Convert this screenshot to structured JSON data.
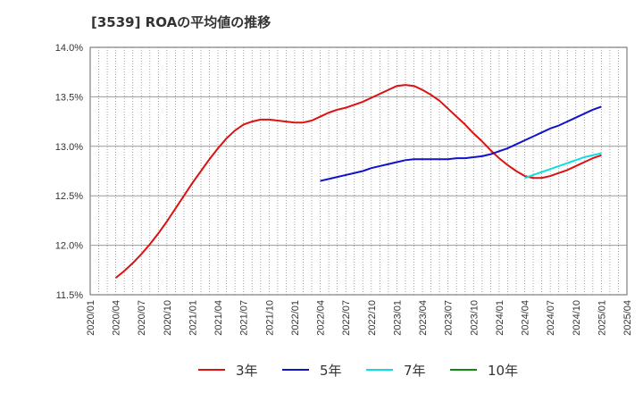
{
  "chart_data": {
    "type": "line",
    "title": "[3539]  ROAの平均値の推移",
    "xlabel": "",
    "ylabel": "",
    "ylim": [
      11.5,
      14.0
    ],
    "yticks": [
      "11.5%",
      "12.0%",
      "12.5%",
      "13.0%",
      "13.5%",
      "14.0%"
    ],
    "ytick_values": [
      11.5,
      12.0,
      12.5,
      13.0,
      13.5,
      14.0
    ],
    "xticks": [
      "2020/01",
      "2020/04",
      "2020/07",
      "2020/10",
      "2021/01",
      "2021/04",
      "2021/07",
      "2021/10",
      "2022/01",
      "2022/04",
      "2022/07",
      "2022/10",
      "2023/01",
      "2023/04",
      "2023/07",
      "2023/10",
      "2024/01",
      "2024/04",
      "2024/07",
      "2024/10",
      "2025/01",
      "2025/04"
    ],
    "grid": true,
    "legend_position": "bottom",
    "series": [
      {
        "name": "3年",
        "color": "#dd1111",
        "points": [
          [
            "2020/04",
            11.67
          ],
          [
            "2020/05",
            11.74
          ],
          [
            "2020/06",
            11.82
          ],
          [
            "2020/07",
            11.91
          ],
          [
            "2020/08",
            12.01
          ],
          [
            "2020/09",
            12.12
          ],
          [
            "2020/10",
            12.24
          ],
          [
            "2020/11",
            12.37
          ],
          [
            "2020/12",
            12.5
          ],
          [
            "2021/01",
            12.63
          ],
          [
            "2021/02",
            12.75
          ],
          [
            "2021/03",
            12.87
          ],
          [
            "2021/04",
            12.98
          ],
          [
            "2021/05",
            13.08
          ],
          [
            "2021/06",
            13.16
          ],
          [
            "2021/07",
            13.22
          ],
          [
            "2021/08",
            13.25
          ],
          [
            "2021/09",
            13.27
          ],
          [
            "2021/10",
            13.27
          ],
          [
            "2021/11",
            13.26
          ],
          [
            "2021/12",
            13.25
          ],
          [
            "2022/01",
            13.24
          ],
          [
            "2022/02",
            13.24
          ],
          [
            "2022/03",
            13.26
          ],
          [
            "2022/04",
            13.3
          ],
          [
            "2022/05",
            13.34
          ],
          [
            "2022/06",
            13.37
          ],
          [
            "2022/07",
            13.39
          ],
          [
            "2022/08",
            13.42
          ],
          [
            "2022/09",
            13.45
          ],
          [
            "2022/10",
            13.49
          ],
          [
            "2022/11",
            13.53
          ],
          [
            "2022/12",
            13.57
          ],
          [
            "2023/01",
            13.61
          ],
          [
            "2023/02",
            13.62
          ],
          [
            "2023/03",
            13.61
          ],
          [
            "2023/04",
            13.57
          ],
          [
            "2023/05",
            13.52
          ],
          [
            "2023/06",
            13.46
          ],
          [
            "2023/07",
            13.38
          ],
          [
            "2023/08",
            13.3
          ],
          [
            "2023/09",
            13.22
          ],
          [
            "2023/10",
            13.13
          ],
          [
            "2023/11",
            13.05
          ],
          [
            "2023/12",
            12.96
          ],
          [
            "2024/01",
            12.88
          ],
          [
            "2024/02",
            12.81
          ],
          [
            "2024/03",
            12.75
          ],
          [
            "2024/04",
            12.7
          ],
          [
            "2024/05",
            12.68
          ],
          [
            "2024/06",
            12.68
          ],
          [
            "2024/07",
            12.7
          ],
          [
            "2024/08",
            12.73
          ],
          [
            "2024/09",
            12.76
          ],
          [
            "2024/10",
            12.8
          ],
          [
            "2024/11",
            12.84
          ],
          [
            "2024/12",
            12.88
          ],
          [
            "2025/01",
            12.91
          ]
        ]
      },
      {
        "name": "5年",
        "color": "#1111cc",
        "points": [
          [
            "2022/04",
            12.65
          ],
          [
            "2022/05",
            12.67
          ],
          [
            "2022/06",
            12.69
          ],
          [
            "2022/07",
            12.71
          ],
          [
            "2022/08",
            12.73
          ],
          [
            "2022/09",
            12.75
          ],
          [
            "2022/10",
            12.78
          ],
          [
            "2022/11",
            12.8
          ],
          [
            "2022/12",
            12.82
          ],
          [
            "2023/01",
            12.84
          ],
          [
            "2023/02",
            12.86
          ],
          [
            "2023/03",
            12.87
          ],
          [
            "2023/04",
            12.87
          ],
          [
            "2023/05",
            12.87
          ],
          [
            "2023/06",
            12.87
          ],
          [
            "2023/07",
            12.87
          ],
          [
            "2023/08",
            12.88
          ],
          [
            "2023/09",
            12.88
          ],
          [
            "2023/10",
            12.89
          ],
          [
            "2023/11",
            12.9
          ],
          [
            "2023/12",
            12.92
          ],
          [
            "2024/01",
            12.95
          ],
          [
            "2024/02",
            12.98
          ],
          [
            "2024/03",
            13.02
          ],
          [
            "2024/04",
            13.06
          ],
          [
            "2024/05",
            13.1
          ],
          [
            "2024/06",
            13.14
          ],
          [
            "2024/07",
            13.18
          ],
          [
            "2024/08",
            13.21
          ],
          [
            "2024/09",
            13.25
          ],
          [
            "2024/10",
            13.29
          ],
          [
            "2024/11",
            13.33
          ],
          [
            "2024/12",
            13.37
          ],
          [
            "2025/01",
            13.4
          ]
        ]
      },
      {
        "name": "7年",
        "color": "#11dddd",
        "points": [
          [
            "2024/04",
            12.68
          ],
          [
            "2024/05",
            12.71
          ],
          [
            "2024/06",
            12.74
          ],
          [
            "2024/07",
            12.77
          ],
          [
            "2024/08",
            12.8
          ],
          [
            "2024/09",
            12.83
          ],
          [
            "2024/10",
            12.86
          ],
          [
            "2024/11",
            12.89
          ],
          [
            "2024/12",
            12.91
          ],
          [
            "2025/01",
            12.93
          ]
        ]
      },
      {
        "name": "10年",
        "color": "#118811",
        "points": []
      }
    ]
  }
}
